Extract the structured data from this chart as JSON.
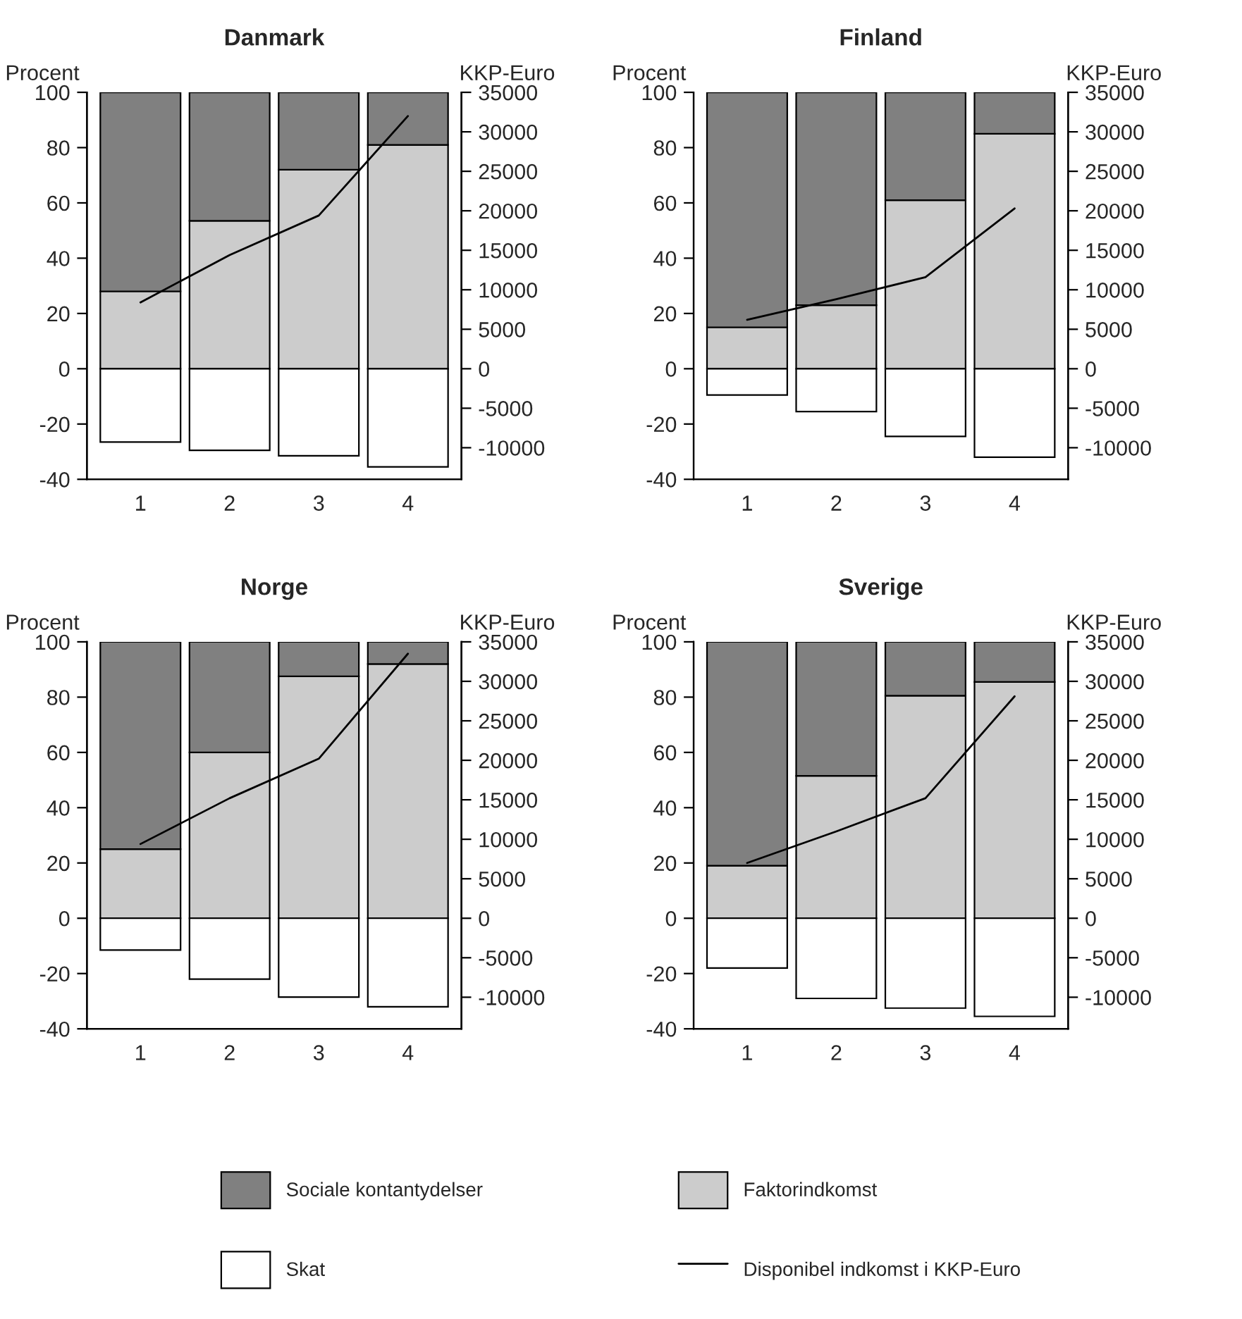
{
  "chart_data": [
    {
      "type": "bar",
      "title": "Danmark",
      "ylabel": "Procent",
      "y2label": "KKP-Euro",
      "categories": [
        "1",
        "2",
        "3",
        "4"
      ],
      "stacked": true,
      "ylim": [
        -40,
        100
      ],
      "yticks": [
        -40,
        -20,
        0,
        20,
        40,
        60,
        80,
        100
      ],
      "y2lim": [
        -14000,
        35000
      ],
      "y2ticks": [
        -10000,
        -5000,
        0,
        5000,
        10000,
        15000,
        20000,
        25000,
        30000,
        35000
      ],
      "grid": false,
      "legend": "bottom",
      "series": [
        {
          "name": "Faktorindkomst",
          "color": "#cccccc",
          "values": [
            28,
            53.5,
            72,
            81
          ]
        },
        {
          "name": "Sociale kontantydelser",
          "color": "#808080",
          "values": [
            72,
            46.5,
            28,
            19
          ]
        },
        {
          "name": "Skat",
          "color": "#ffffff",
          "values": [
            -26.5,
            -29.5,
            -31.5,
            -35.5
          ]
        },
        {
          "name": "Disponibel indkomst i KKP-Euro",
          "type": "line",
          "axis": "y2",
          "color": "#000000",
          "values": [
            8400,
            14400,
            19400,
            32000
          ]
        }
      ]
    },
    {
      "type": "bar",
      "title": "Finland",
      "ylabel": "Procent",
      "y2label": "KKP-Euro",
      "categories": [
        "1",
        "2",
        "3",
        "4"
      ],
      "stacked": true,
      "ylim": [
        -40,
        100
      ],
      "yticks": [
        -40,
        -20,
        0,
        20,
        40,
        60,
        80,
        100
      ],
      "y2lim": [
        -14000,
        35000
      ],
      "y2ticks": [
        -10000,
        -5000,
        0,
        5000,
        10000,
        15000,
        20000,
        25000,
        30000,
        35000
      ],
      "grid": false,
      "series": [
        {
          "color": "#cccccc",
          "values": [
            15,
            23,
            61,
            85
          ]
        },
        {
          "color": "#808080",
          "values": [
            85,
            77,
            39,
            15
          ]
        },
        {
          "color": "#ffffff",
          "values": [
            -9.5,
            -15.5,
            -24.5,
            -32
          ]
        },
        {
          "type": "line",
          "axis": "y2",
          "color": "#000000",
          "values": [
            6200,
            8800,
            11600,
            20300
          ]
        }
      ]
    },
    {
      "type": "bar",
      "title": "Norge",
      "ylabel": "Procent",
      "y2label": "KKP-Euro",
      "categories": [
        "1",
        "2",
        "3",
        "4"
      ],
      "stacked": true,
      "ylim": [
        -40,
        100
      ],
      "yticks": [
        -40,
        -20,
        0,
        20,
        40,
        60,
        80,
        100
      ],
      "y2lim": [
        -14000,
        35000
      ],
      "y2ticks": [
        -10000,
        -5000,
        0,
        5000,
        10000,
        15000,
        20000,
        25000,
        30000,
        35000
      ],
      "grid": false,
      "series": [
        {
          "color": "#cccccc",
          "values": [
            25,
            60,
            87.5,
            92
          ]
        },
        {
          "color": "#808080",
          "values": [
            75,
            40,
            12.5,
            8
          ]
        },
        {
          "color": "#ffffff",
          "values": [
            -11.5,
            -22,
            -28.5,
            -32
          ]
        },
        {
          "type": "line",
          "axis": "y2",
          "color": "#000000",
          "values": [
            9400,
            15200,
            20200,
            33500
          ]
        }
      ]
    },
    {
      "type": "bar",
      "title": "Sverige",
      "ylabel": "Procent",
      "y2label": "KKP-Euro",
      "categories": [
        "1",
        "2",
        "3",
        "4"
      ],
      "stacked": true,
      "ylim": [
        -40,
        100
      ],
      "yticks": [
        -40,
        -20,
        0,
        20,
        40,
        60,
        80,
        100
      ],
      "y2lim": [
        -14000,
        35000
      ],
      "y2ticks": [
        -10000,
        -5000,
        0,
        5000,
        10000,
        15000,
        20000,
        25000,
        30000,
        35000
      ],
      "grid": false,
      "series": [
        {
          "color": "#cccccc",
          "values": [
            19,
            51.5,
            80.5,
            85.5
          ]
        },
        {
          "color": "#808080",
          "values": [
            81,
            48.5,
            19.5,
            14.5
          ]
        },
        {
          "color": "#ffffff",
          "values": [
            -18,
            -29,
            -32.5,
            -35.5
          ]
        },
        {
          "type": "line",
          "axis": "y2",
          "color": "#000000",
          "values": [
            7000,
            11000,
            15200,
            28100
          ]
        }
      ]
    }
  ]
}
